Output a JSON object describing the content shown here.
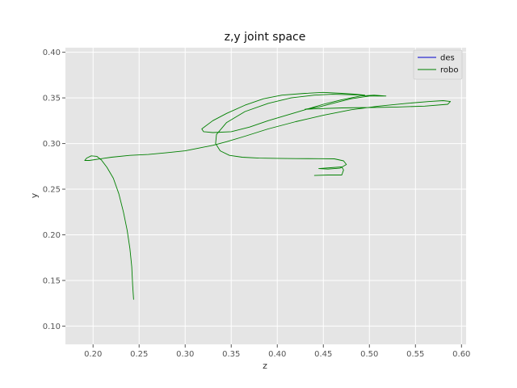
{
  "chart_data": {
    "type": "line",
    "title": "z,y joint space",
    "xlabel": "z",
    "ylabel": "y",
    "xlim": [
      0.17,
      0.605
    ],
    "ylim": [
      0.08,
      0.405
    ],
    "xticks": [
      "0.20",
      "0.25",
      "0.30",
      "0.35",
      "0.40",
      "0.45",
      "0.50",
      "0.55",
      "0.60"
    ],
    "yticks": [
      "0.10",
      "0.15",
      "0.20",
      "0.25",
      "0.30",
      "0.35",
      "0.40"
    ],
    "grid": true,
    "legend_position": "top-right",
    "colors": {
      "background": "#e5e5e5",
      "grid": "#ffffff",
      "des": "#0000cc",
      "robo": "#008000"
    },
    "series": [
      {
        "name": "des",
        "points": []
      },
      {
        "name": "robo",
        "points": [
          [
            0.244,
            0.129
          ],
          [
            0.243,
            0.145
          ],
          [
            0.242,
            0.165
          ],
          [
            0.24,
            0.185
          ],
          [
            0.237,
            0.205
          ],
          [
            0.233,
            0.225
          ],
          [
            0.228,
            0.245
          ],
          [
            0.222,
            0.262
          ],
          [
            0.215,
            0.274
          ],
          [
            0.209,
            0.282
          ],
          [
            0.204,
            0.286
          ],
          [
            0.198,
            0.2865
          ],
          [
            0.193,
            0.284
          ],
          [
            0.191,
            0.2815
          ],
          [
            0.196,
            0.2815
          ],
          [
            0.206,
            0.283
          ],
          [
            0.22,
            0.285
          ],
          [
            0.24,
            0.287
          ],
          [
            0.26,
            0.288
          ],
          [
            0.28,
            0.29
          ],
          [
            0.3,
            0.292
          ],
          [
            0.315,
            0.295
          ],
          [
            0.33,
            0.298
          ],
          [
            0.345,
            0.302
          ],
          [
            0.365,
            0.308
          ],
          [
            0.39,
            0.316
          ],
          [
            0.42,
            0.324
          ],
          [
            0.45,
            0.331
          ],
          [
            0.48,
            0.337
          ],
          [
            0.51,
            0.341
          ],
          [
            0.54,
            0.344
          ],
          [
            0.565,
            0.346
          ],
          [
            0.58,
            0.347
          ],
          [
            0.588,
            0.346
          ],
          [
            0.585,
            0.343
          ],
          [
            0.56,
            0.341
          ],
          [
            0.53,
            0.34
          ],
          [
            0.5,
            0.3395
          ],
          [
            0.47,
            0.339
          ],
          [
            0.44,
            0.338
          ],
          [
            0.43,
            0.3375
          ],
          [
            0.445,
            0.34
          ],
          [
            0.46,
            0.344
          ],
          [
            0.48,
            0.349
          ],
          [
            0.5,
            0.352
          ],
          [
            0.518,
            0.352
          ],
          [
            0.505,
            0.353
          ],
          [
            0.49,
            0.352
          ],
          [
            0.47,
            0.348
          ],
          [
            0.45,
            0.343
          ],
          [
            0.43,
            0.337
          ],
          [
            0.41,
            0.331
          ],
          [
            0.39,
            0.325
          ],
          [
            0.37,
            0.318
          ],
          [
            0.35,
            0.313
          ],
          [
            0.33,
            0.312
          ],
          [
            0.32,
            0.313
          ],
          [
            0.318,
            0.316
          ],
          [
            0.33,
            0.325
          ],
          [
            0.345,
            0.333
          ],
          [
            0.365,
            0.342
          ],
          [
            0.385,
            0.349
          ],
          [
            0.405,
            0.353
          ],
          [
            0.43,
            0.355
          ],
          [
            0.45,
            0.356
          ],
          [
            0.47,
            0.355
          ],
          [
            0.485,
            0.354
          ],
          [
            0.495,
            0.353
          ],
          [
            0.48,
            0.3535
          ],
          [
            0.46,
            0.354
          ],
          [
            0.44,
            0.353
          ],
          [
            0.415,
            0.35
          ],
          [
            0.39,
            0.344
          ],
          [
            0.365,
            0.335
          ],
          [
            0.345,
            0.323
          ],
          [
            0.334,
            0.31
          ],
          [
            0.333,
            0.3
          ],
          [
            0.338,
            0.292
          ],
          [
            0.348,
            0.287
          ],
          [
            0.362,
            0.285
          ],
          [
            0.38,
            0.284
          ],
          [
            0.4,
            0.2838
          ],
          [
            0.42,
            0.2835
          ],
          [
            0.445,
            0.2834
          ],
          [
            0.462,
            0.2832
          ],
          [
            0.472,
            0.281
          ],
          [
            0.475,
            0.277
          ],
          [
            0.468,
            0.273
          ],
          [
            0.455,
            0.272
          ],
          [
            0.445,
            0.2725
          ],
          [
            0.458,
            0.2735
          ],
          [
            0.47,
            0.2745
          ],
          [
            0.472,
            0.271
          ],
          [
            0.47,
            0.2655
          ],
          [
            0.455,
            0.2655
          ],
          [
            0.44,
            0.265
          ]
        ]
      }
    ]
  }
}
